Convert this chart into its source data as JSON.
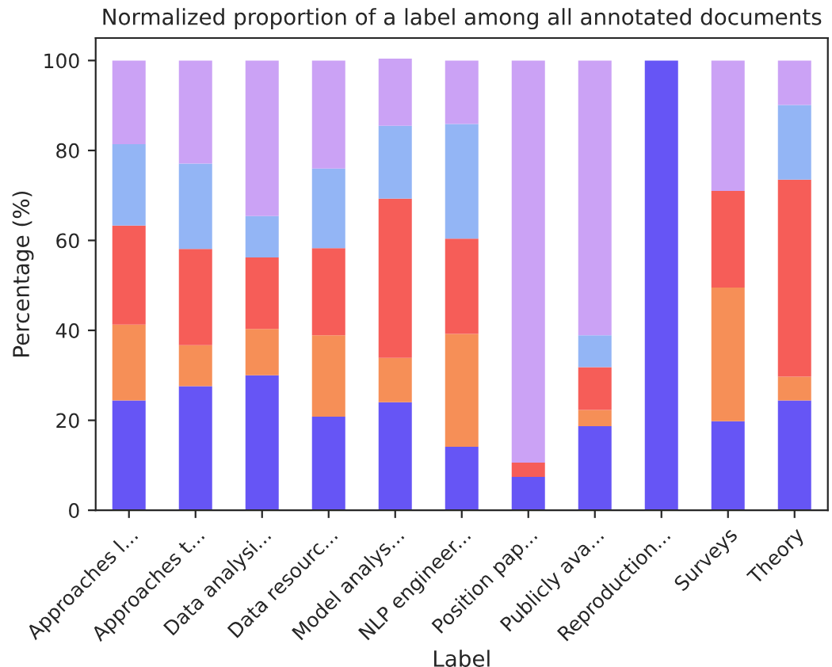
{
  "chart_data": {
    "type": "bar",
    "stacked": true,
    "title": "Normalized proportion of a label among all annotated documents",
    "xlabel": "Label",
    "ylabel": "Percentage (%)",
    "categories": [
      "Approaches l...",
      "Approaches t...",
      "Data analysi...",
      "Data resourc...",
      "Model analys...",
      "NLP engineer...",
      "Position pap...",
      "Publicly ava...",
      "Reproduction...",
      "Surveys",
      "Theory"
    ],
    "series": [
      {
        "color": "#6655f5",
        "values": [
          24.4,
          27.6,
          30.0,
          20.8,
          24.0,
          14.1,
          7.4,
          18.7,
          100,
          19.8,
          24.4
        ]
      },
      {
        "color": "#f68f57",
        "values": [
          16.9,
          9.1,
          10.3,
          18.1,
          9.9,
          25.1,
          0,
          3.6,
          0,
          29.7,
          5.3
        ]
      },
      {
        "color": "#f65d58",
        "values": [
          22.0,
          21.4,
          15.9,
          19.4,
          35.4,
          21.2,
          3.2,
          9.5,
          0,
          21.5,
          43.8
        ]
      },
      {
        "color": "#93b5f5",
        "values": [
          18.1,
          19.0,
          9.2,
          17.7,
          16.2,
          25.5,
          0,
          7.1,
          0,
          0,
          16.6
        ]
      },
      {
        "color": "#cba2f5",
        "values": [
          18.6,
          22.9,
          34.6,
          24.0,
          14.9,
          14.1,
          89.4,
          61.1,
          0,
          29.0,
          9.9
        ]
      }
    ],
    "ylim": [
      0,
      105
    ],
    "yticks": [
      0,
      20,
      40,
      60,
      80,
      100
    ],
    "grid": false
  }
}
